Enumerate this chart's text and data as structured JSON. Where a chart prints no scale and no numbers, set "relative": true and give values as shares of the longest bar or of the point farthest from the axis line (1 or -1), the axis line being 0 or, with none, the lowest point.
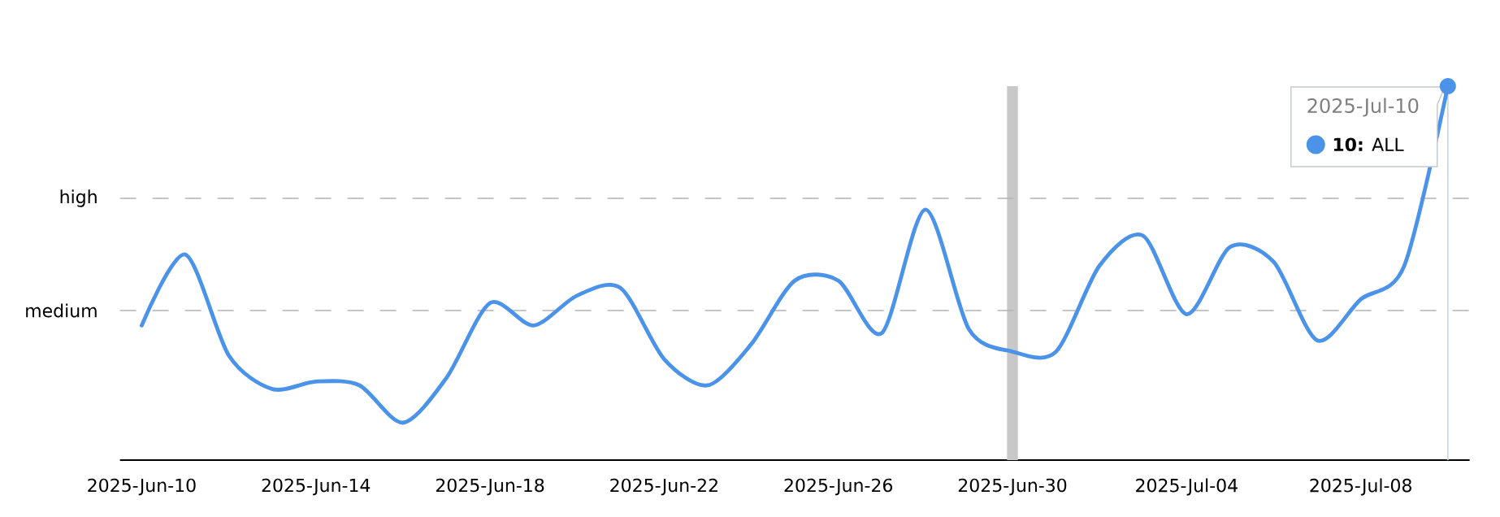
{
  "chart_data": {
    "type": "line",
    "relative": true,
    "x": [
      "2025-06-10",
      "2025-06-11",
      "2025-06-12",
      "2025-06-13",
      "2025-06-14",
      "2025-06-15",
      "2025-06-16",
      "2025-06-17",
      "2025-06-18",
      "2025-06-19",
      "2025-06-20",
      "2025-06-21",
      "2025-06-22",
      "2025-06-23",
      "2025-06-24",
      "2025-06-25",
      "2025-06-26",
      "2025-06-27",
      "2025-06-28",
      "2025-06-29",
      "2025-06-30",
      "2025-07-01",
      "2025-07-02",
      "2025-07-03",
      "2025-07-04",
      "2025-07-05",
      "2025-07-06",
      "2025-07-07",
      "2025-07-08",
      "2025-07-09",
      "2025-07-10"
    ],
    "values": [
      0.36,
      0.55,
      0.28,
      0.19,
      0.21,
      0.2,
      0.1,
      0.22,
      0.42,
      0.36,
      0.44,
      0.46,
      0.27,
      0.2,
      0.31,
      0.48,
      0.48,
      0.34,
      0.67,
      0.35,
      0.29,
      0.29,
      0.52,
      0.6,
      0.39,
      0.57,
      0.53,
      0.32,
      0.43,
      0.52,
      1
    ],
    "color": "#4a93e8",
    "line_style": "solid",
    "xlim": [
      "2025-06-09T12:00",
      "2025-07-10T12:00"
    ],
    "xticks": [
      {
        "value": "2025-06-10",
        "label": "2025-Jun-10"
      },
      {
        "value": "2025-06-14",
        "label": "2025-Jun-14"
      },
      {
        "value": "2025-06-18",
        "label": "2025-Jun-18"
      },
      {
        "value": "2025-06-22",
        "label": "2025-Jun-22"
      },
      {
        "value": "2025-06-26",
        "label": "2025-Jun-26"
      },
      {
        "value": "2025-06-30",
        "label": "2025-Jun-30"
      },
      {
        "value": "2025-07-04",
        "label": "2025-Jul-04"
      },
      {
        "value": "2025-07-08",
        "label": "2025-Jul-08"
      }
    ],
    "ref_lines": [
      {
        "axis": "y",
        "value": 0.4,
        "label": "medium",
        "line_style": "dashed",
        "color": "#b4b4b4"
      },
      {
        "axis": "y",
        "value": 0.7,
        "label": "high",
        "line_style": "dashed",
        "color": "#b4b4b4"
      },
      {
        "axis": "x",
        "value": "2025-07-10",
        "color": "#d0d6de"
      }
    ],
    "bands": [
      {
        "axis": "x",
        "from": "2025-06-29T21:00",
        "to": "2025-06-30T03:00",
        "color": "#c8c8c8"
      }
    ],
    "annotations": [
      "2025-Jul-10",
      "● **10:** ALL"
    ]
  }
}
